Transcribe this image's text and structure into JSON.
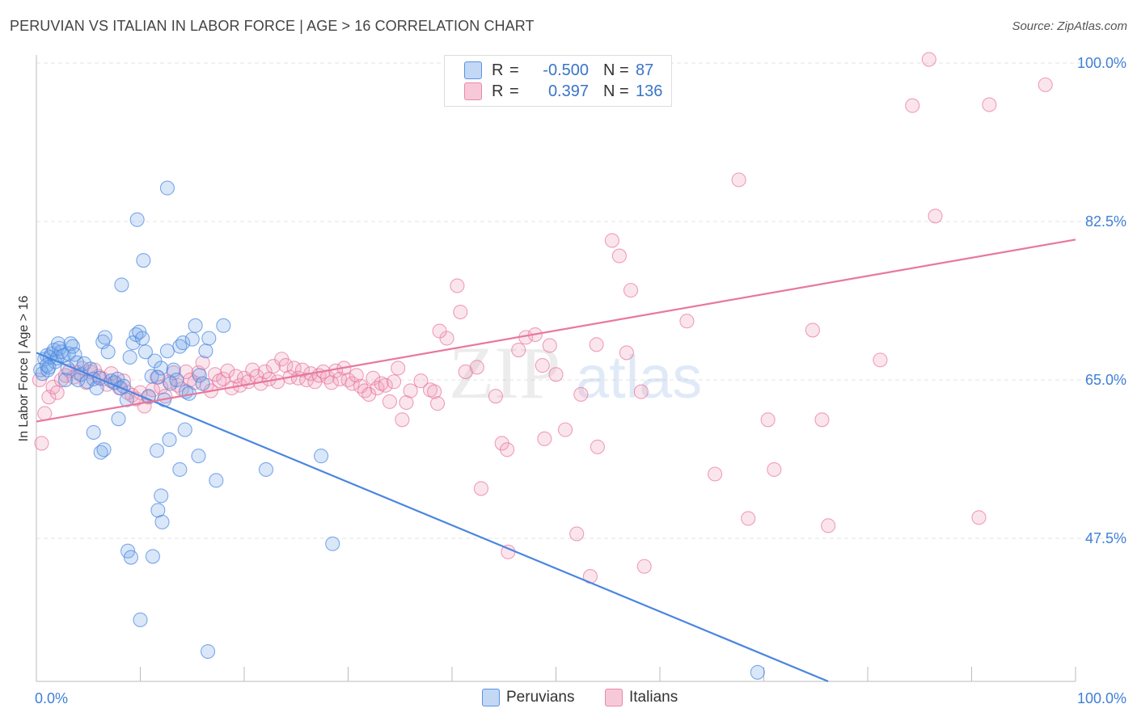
{
  "title": "PERUVIAN VS ITALIAN IN LABOR FORCE | AGE > 16 CORRELATION CHART",
  "source": "Source: ZipAtlas.com",
  "watermark": {
    "zip": "ZIP",
    "atlas": "atlas"
  },
  "legend": {
    "r_label": "R =",
    "n_label": "N =",
    "rows": [
      {
        "name": "Peruvians",
        "r": "-0.500",
        "n": "87",
        "color": "#5b93e0",
        "fill": "#c2d8f5"
      },
      {
        "name": "Italians",
        "r": "0.397",
        "n": "136",
        "color": "#e68aa9",
        "fill": "#f7c9d8"
      }
    ]
  },
  "chart_data": {
    "type": "scatter",
    "title": "PERUVIAN VS ITALIAN IN LABOR FORCE | AGE > 16 CORRELATION CHART",
    "xlabel": "",
    "ylabel": "In Labor Force | Age > 16",
    "xlim": [
      0,
      100
    ],
    "ylim": [
      31.7,
      100
    ],
    "x_tick_labels": [
      "0.0%",
      "100.0%"
    ],
    "y_ticks": [
      47.5,
      65.0,
      82.5,
      100.0
    ],
    "y_tick_labels": [
      "47.5%",
      "65.0%",
      "82.5%",
      "100.0%"
    ],
    "grid": true,
    "legend_position": "bottom-center",
    "series": [
      {
        "name": "Peruvians",
        "color": "#4a86e0",
        "trend": {
          "x": [
            0,
            76.2
          ],
          "y": [
            68.0,
            31.7
          ]
        },
        "points": [
          [
            0.4,
            66.1
          ],
          [
            0.6,
            65.7
          ],
          [
            0.8,
            67.3
          ],
          [
            1.0,
            67.7
          ],
          [
            1.1,
            66.1
          ],
          [
            1.3,
            67.5
          ],
          [
            1.5,
            67.9
          ],
          [
            1.7,
            68.3
          ],
          [
            1.8,
            67.0
          ],
          [
            2.0,
            67.4
          ],
          [
            2.2,
            68.5
          ],
          [
            2.4,
            68.1
          ],
          [
            2.6,
            67.7
          ],
          [
            2.8,
            65.0
          ],
          [
            3.0,
            66.3
          ],
          [
            3.1,
            67.9
          ],
          [
            3.3,
            69.0
          ],
          [
            3.5,
            68.7
          ],
          [
            3.7,
            67.8
          ],
          [
            3.9,
            66.9
          ],
          [
            4.0,
            65.0
          ],
          [
            4.3,
            65.6
          ],
          [
            4.6,
            66.8
          ],
          [
            4.9,
            64.8
          ],
          [
            5.2,
            66.2
          ],
          [
            5.5,
            65.1
          ],
          [
            5.8,
            64.1
          ],
          [
            6.1,
            65.2
          ],
          [
            6.4,
            69.2
          ],
          [
            6.6,
            69.7
          ],
          [
            6.9,
            68.1
          ],
          [
            7.2,
            64.9
          ],
          [
            7.5,
            64.7
          ],
          [
            7.8,
            65.1
          ],
          [
            8.1,
            64.1
          ],
          [
            8.4,
            64.3
          ],
          [
            8.7,
            62.8
          ],
          [
            9.0,
            67.5
          ],
          [
            9.3,
            69.1
          ],
          [
            9.6,
            70.0
          ],
          [
            9.9,
            70.3
          ],
          [
            10.2,
            69.6
          ],
          [
            10.5,
            68.1
          ],
          [
            10.8,
            63.2
          ],
          [
            11.1,
            65.4
          ],
          [
            11.4,
            67.1
          ],
          [
            11.7,
            65.3
          ],
          [
            12.0,
            66.3
          ],
          [
            12.3,
            62.8
          ],
          [
            12.6,
            68.2
          ],
          [
            12.9,
            64.6
          ],
          [
            13.2,
            66.1
          ],
          [
            13.5,
            65.0
          ],
          [
            13.8,
            68.7
          ],
          [
            14.1,
            69.1
          ],
          [
            14.4,
            63.7
          ],
          [
            14.7,
            63.5
          ],
          [
            15.0,
            69.5
          ],
          [
            15.3,
            71.0
          ],
          [
            15.7,
            65.5
          ],
          [
            16.0,
            64.6
          ],
          [
            16.3,
            68.2
          ],
          [
            16.6,
            69.6
          ],
          [
            5.5,
            59.2
          ],
          [
            6.2,
            57.0
          ],
          [
            6.5,
            57.3
          ],
          [
            7.9,
            60.7
          ],
          [
            8.2,
            75.5
          ],
          [
            9.7,
            82.7
          ],
          [
            10.3,
            78.2
          ],
          [
            11.6,
            57.2
          ],
          [
            12.0,
            52.2
          ],
          [
            11.2,
            45.5
          ],
          [
            8.8,
            46.1
          ],
          [
            9.1,
            45.4
          ],
          [
            10.0,
            38.5
          ],
          [
            12.8,
            58.4
          ],
          [
            11.7,
            50.6
          ],
          [
            12.1,
            49.3
          ],
          [
            13.8,
            55.1
          ],
          [
            14.3,
            59.5
          ],
          [
            15.6,
            56.6
          ],
          [
            17.3,
            53.9
          ],
          [
            18.0,
            71.0
          ],
          [
            28.5,
            46.9
          ],
          [
            22.1,
            55.1
          ],
          [
            27.4,
            56.6
          ],
          [
            16.5,
            35.0
          ],
          [
            12.6,
            86.2
          ],
          [
            69.4,
            32.7
          ],
          [
            1.0,
            66.6
          ],
          [
            1.2,
            66.4
          ],
          [
            2.1,
            69.0
          ]
        ]
      },
      {
        "name": "Italians",
        "color": "#e8789c",
        "trend": {
          "x": [
            0,
            100
          ],
          "y": [
            60.4,
            80.5
          ]
        },
        "points": [
          [
            0.3,
            65.0
          ],
          [
            0.5,
            58.0
          ],
          [
            0.8,
            61.3
          ],
          [
            1.2,
            63.1
          ],
          [
            1.6,
            64.2
          ],
          [
            2.0,
            63.6
          ],
          [
            2.4,
            65.0
          ],
          [
            2.8,
            65.5
          ],
          [
            3.2,
            66.0
          ],
          [
            3.6,
            65.3
          ],
          [
            4.0,
            65.8
          ],
          [
            4.4,
            66.3
          ],
          [
            4.8,
            64.7
          ],
          [
            5.2,
            65.9
          ],
          [
            5.6,
            66.1
          ],
          [
            6.0,
            65.4
          ],
          [
            6.4,
            65.1
          ],
          [
            6.8,
            64.5
          ],
          [
            7.2,
            65.7
          ],
          [
            7.6,
            64.7
          ],
          [
            8.0,
            64.1
          ],
          [
            8.4,
            64.9
          ],
          [
            8.8,
            63.6
          ],
          [
            9.2,
            63.3
          ],
          [
            9.6,
            62.9
          ],
          [
            10.0,
            63.6
          ],
          [
            10.4,
            62.1
          ],
          [
            10.8,
            63.1
          ],
          [
            11.2,
            63.9
          ],
          [
            11.6,
            65.3
          ],
          [
            12.0,
            64.2
          ],
          [
            12.4,
            63.2
          ],
          [
            12.8,
            64.8
          ],
          [
            13.2,
            65.8
          ],
          [
            13.6,
            64.4
          ],
          [
            14.0,
            64.0
          ],
          [
            14.4,
            65.9
          ],
          [
            14.8,
            65.0
          ],
          [
            15.2,
            64.7
          ],
          [
            15.6,
            65.8
          ],
          [
            16.0,
            66.9
          ],
          [
            16.4,
            64.4
          ],
          [
            16.8,
            63.8
          ],
          [
            17.2,
            65.6
          ],
          [
            17.6,
            64.9
          ],
          [
            18.0,
            65.1
          ],
          [
            18.4,
            66.0
          ],
          [
            18.8,
            64.1
          ],
          [
            19.2,
            65.4
          ],
          [
            19.6,
            64.4
          ],
          [
            20.0,
            65.2
          ],
          [
            20.4,
            64.8
          ],
          [
            20.8,
            66.1
          ],
          [
            21.2,
            65.4
          ],
          [
            21.6,
            64.6
          ],
          [
            22.0,
            65.9
          ],
          [
            22.4,
            65.1
          ],
          [
            22.8,
            66.5
          ],
          [
            23.2,
            64.8
          ],
          [
            23.6,
            67.3
          ],
          [
            24.0,
            66.6
          ],
          [
            24.4,
            65.3
          ],
          [
            24.8,
            66.3
          ],
          [
            25.2,
            65.2
          ],
          [
            25.6,
            66.1
          ],
          [
            26.0,
            65.0
          ],
          [
            26.4,
            65.7
          ],
          [
            26.8,
            64.8
          ],
          [
            27.2,
            65.5
          ],
          [
            27.6,
            65.9
          ],
          [
            28.0,
            65.3
          ],
          [
            28.4,
            64.7
          ],
          [
            28.8,
            66.0
          ],
          [
            29.2,
            65.1
          ],
          [
            29.6,
            66.3
          ],
          [
            30.0,
            65.0
          ],
          [
            30.4,
            64.6
          ],
          [
            30.8,
            65.5
          ],
          [
            31.2,
            64.3
          ],
          [
            31.6,
            63.8
          ],
          [
            32.0,
            63.4
          ],
          [
            32.4,
            65.2
          ],
          [
            32.8,
            64.1
          ],
          [
            33.2,
            64.6
          ],
          [
            33.6,
            64.4
          ],
          [
            34.0,
            62.6
          ],
          [
            34.4,
            64.8
          ],
          [
            34.8,
            66.3
          ],
          [
            35.2,
            60.6
          ],
          [
            35.6,
            62.5
          ],
          [
            36.0,
            63.8
          ],
          [
            37.0,
            64.9
          ],
          [
            37.9,
            63.9
          ],
          [
            38.3,
            63.7
          ],
          [
            38.6,
            62.4
          ],
          [
            39.5,
            69.6
          ],
          [
            40.5,
            75.4
          ],
          [
            41.3,
            65.9
          ],
          [
            42.8,
            53.0
          ],
          [
            42.4,
            66.4
          ],
          [
            44.8,
            58.0
          ],
          [
            45.3,
            57.3
          ],
          [
            44.2,
            63.2
          ],
          [
            45.4,
            46.0
          ],
          [
            46.4,
            68.3
          ],
          [
            47.1,
            69.7
          ],
          [
            48.0,
            70.0
          ],
          [
            48.7,
            66.6
          ],
          [
            48.9,
            58.5
          ],
          [
            49.4,
            68.8
          ],
          [
            50.0,
            65.6
          ],
          [
            50.9,
            59.5
          ],
          [
            52.0,
            48.0
          ],
          [
            52.4,
            63.4
          ],
          [
            53.3,
            43.3
          ],
          [
            53.9,
            68.9
          ],
          [
            54.0,
            57.6
          ],
          [
            55.4,
            80.4
          ],
          [
            56.1,
            78.7
          ],
          [
            57.2,
            74.9
          ],
          [
            56.8,
            68.0
          ],
          [
            58.2,
            63.7
          ],
          [
            58.5,
            44.4
          ],
          [
            62.6,
            71.5
          ],
          [
            65.3,
            54.6
          ],
          [
            67.6,
            87.1
          ],
          [
            68.5,
            49.7
          ],
          [
            70.4,
            60.6
          ],
          [
            71.0,
            55.1
          ],
          [
            75.6,
            60.6
          ],
          [
            76.2,
            48.9
          ],
          [
            74.7,
            70.5
          ],
          [
            81.2,
            67.2
          ],
          [
            84.3,
            95.3
          ],
          [
            85.9,
            100.4
          ],
          [
            86.5,
            83.1
          ],
          [
            90.7,
            49.8
          ],
          [
            91.7,
            95.4
          ],
          [
            97.1,
            97.6
          ],
          [
            40.8,
            72.5
          ],
          [
            38.8,
            70.4
          ]
        ]
      }
    ]
  }
}
